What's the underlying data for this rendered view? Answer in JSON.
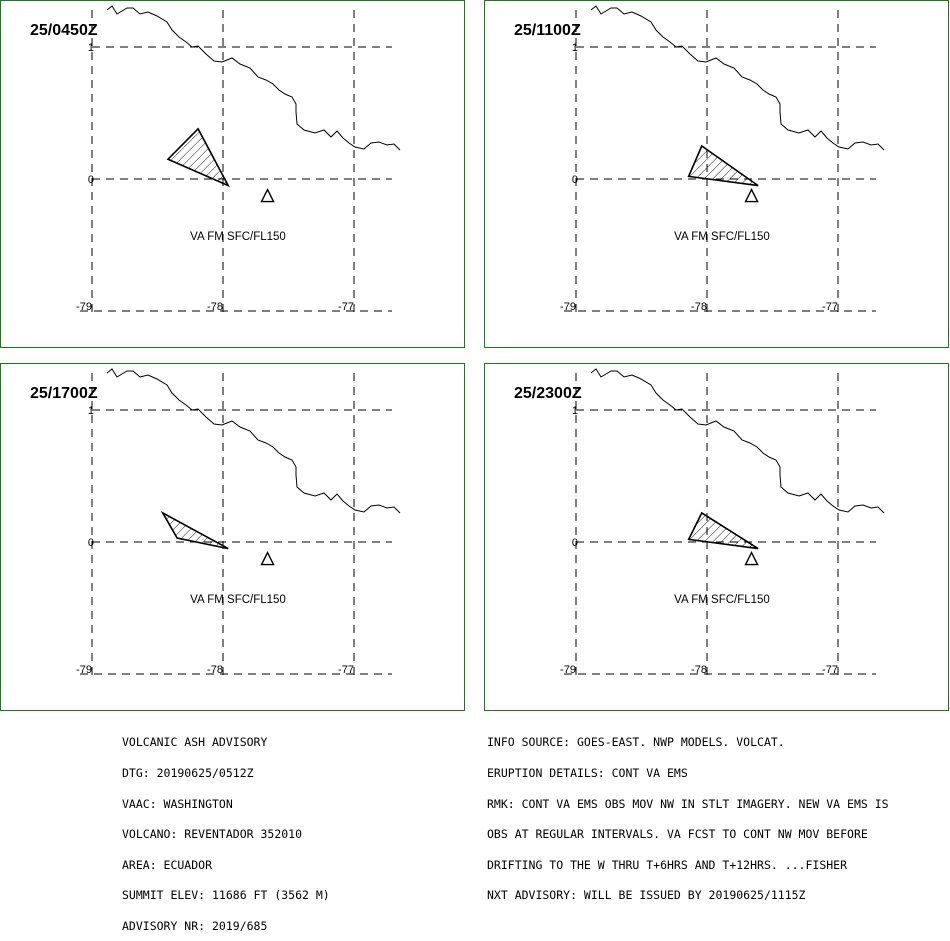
{
  "map": {
    "panels": [
      {
        "time_label": "25/0450Z",
        "va_label": "VA FM SFC/FL150",
        "ash_polygon": [
          [
            -78.19,
            0.38
          ],
          [
            -78.42,
            0.15
          ],
          [
            -77.96,
            -0.05
          ]
        ]
      },
      {
        "time_label": "25/1100Z",
        "va_label": "VA FM SFC/FL150",
        "ash_polygon": [
          [
            -78.04,
            0.25
          ],
          [
            -78.14,
            0.02
          ],
          [
            -77.61,
            -0.05
          ]
        ]
      },
      {
        "time_label": "25/1700Z",
        "va_label": "VA FM SFC/FL150",
        "ash_polygon": [
          [
            -78.46,
            0.22
          ],
          [
            -78.35,
            0.03
          ],
          [
            -77.96,
            -0.05
          ]
        ]
      },
      {
        "time_label": "25/2300Z",
        "va_label": "VA FM SFC/FL150",
        "ash_polygon": [
          [
            -78.04,
            0.22
          ],
          [
            -78.14,
            0.02
          ],
          [
            -77.61,
            -0.05
          ]
        ]
      }
    ],
    "lon_ticks": [
      "-79",
      "-78",
      "-77"
    ],
    "lat_ticks": [
      "1",
      "0"
    ],
    "volcano": {
      "lon": -77.66,
      "lat": -0.08,
      "marker": "volcano-triangle-icon"
    },
    "colors": {
      "frame": "#1a7a1a",
      "line": "#000000"
    }
  },
  "advisory": {
    "left": [
      "VOLCANIC ASH ADVISORY",
      "DTG: 20190625/0512Z",
      "VAAC: WASHINGTON",
      "VOLCANO: REVENTADOR 352010",
      "AREA: ECUADOR",
      "SUMMIT ELEV: 11686 FT (3562 M)",
      "ADVISORY NR: 2019/685"
    ],
    "right": [
      "INFO SOURCE: GOES-EAST. NWP MODELS. VOLCAT.",
      "ERUPTION DETAILS: CONT VA EMS",
      "RMK: CONT VA EMS OBS MOV NW IN STLT IMAGERY. NEW VA EMS IS",
      "OBS AT REGULAR INTERVALS. VA FCST TO CONT NW MOV BEFORE",
      "DRIFTING TO THE W THRU T+6HRS AND T+12HRS. ...FISHER",
      "NXT ADVISORY: WILL BE ISSUED BY 20190625/1115Z"
    ]
  }
}
